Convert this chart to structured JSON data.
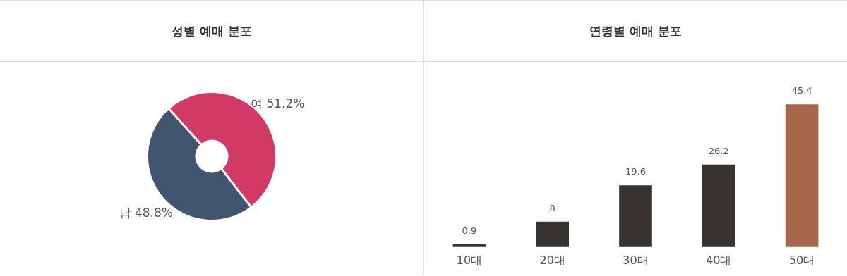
{
  "chart_data": [
    {
      "type": "donut",
      "title": "성별 예매 분포",
      "categories": [
        "여",
        "남"
      ],
      "values": [
        51.2,
        48.8
      ],
      "colors": [
        "#d23a66",
        "#41566e"
      ],
      "value_labels": [
        "51.2%",
        "48.8%"
      ],
      "legend": false
    },
    {
      "type": "bar",
      "title": "연령별 예매 분포",
      "categories": [
        "10대",
        "20대",
        "30대",
        "40대",
        "50대"
      ],
      "values": [
        0.9,
        8,
        19.6,
        26.2,
        45.4
      ],
      "colors": [
        "#373331",
        "#373331",
        "#373331",
        "#373331",
        "#a5664a"
      ],
      "data_labels": true,
      "legend": false
    }
  ]
}
